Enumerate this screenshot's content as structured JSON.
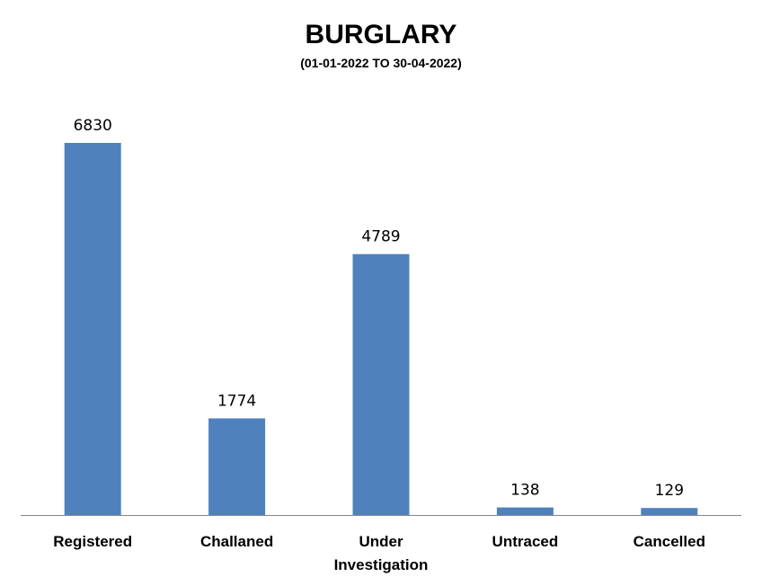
{
  "chart_data": {
    "type": "bar",
    "title": "BURGLARY",
    "subtitle": "(01-01-2022 TO 30-04-2022)",
    "categories": [
      "Registered",
      "Challaned",
      "Under Investigation",
      "Untraced",
      "Cancelled"
    ],
    "category_lines": [
      [
        "Registered"
      ],
      [
        "Challaned"
      ],
      [
        "Under",
        "Investigation"
      ],
      [
        "Untraced"
      ],
      [
        "Cancelled"
      ]
    ],
    "values": [
      6830,
      1774,
      4789,
      138,
      129
    ],
    "data_labels": [
      "6830",
      "1774",
      "4789",
      "138",
      "129"
    ],
    "ylim": [
      0,
      6830
    ],
    "xlabel": "",
    "ylabel": "",
    "grid": false,
    "legend": "none",
    "bar_color": "#4F81BD",
    "axis_color": "#868686"
  }
}
